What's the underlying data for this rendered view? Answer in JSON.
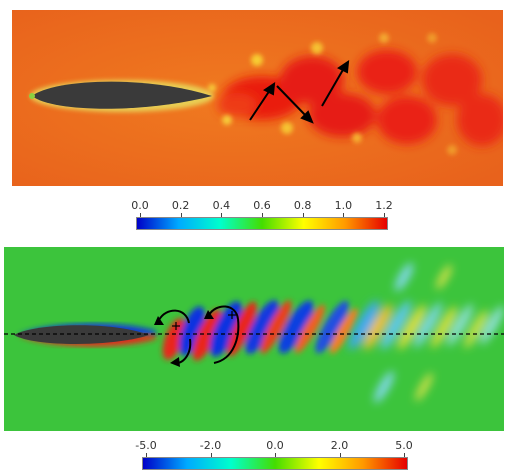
{
  "figure": {
    "top_colorbar": {
      "tick_labels": [
        "0.0",
        "0.2",
        "0.4",
        "0.6",
        "0.8",
        "1.0",
        "1.2"
      ],
      "colors": [
        "#0000c8",
        "#00aaff",
        "#00ffcc",
        "#44dd00",
        "#ffff00",
        "#ff9900",
        "#e60000"
      ]
    },
    "bottom_colorbar": {
      "tick_labels": [
        "-5.0",
        "-2.0",
        "0.0",
        "2.0",
        "5.0"
      ],
      "colors": [
        "#0000c8",
        "#00aaff",
        "#00ffcc",
        "#44dd00",
        "#ffff00",
        "#ff9900",
        "#e60000"
      ]
    },
    "colors": {
      "top_background": "#ee6a1c",
      "bottom_background": "#3cc43c",
      "body": "#3a3a3a",
      "wake_red": "#ea1a10",
      "vortex_blue": "#1030e0"
    }
  }
}
